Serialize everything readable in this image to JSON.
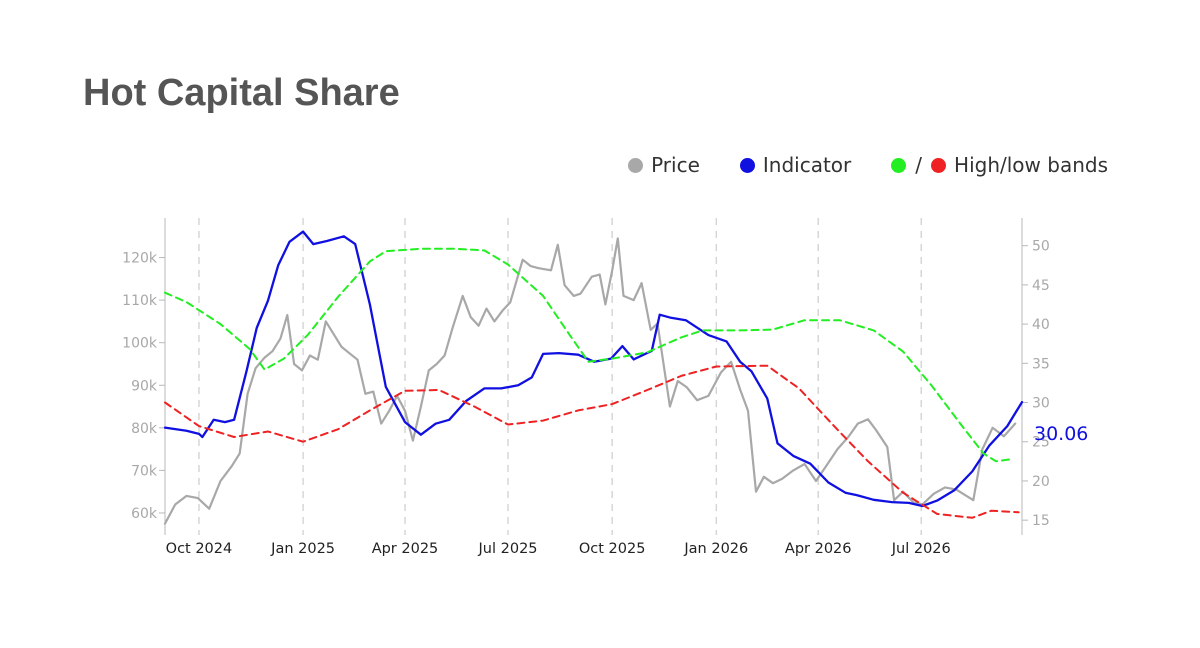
{
  "title": "Hot Capital Share",
  "legend": {
    "price": {
      "label": "Price",
      "color": "#a8a8a8"
    },
    "indicator": {
      "label": "Indicator",
      "color": "#1010e0"
    },
    "bands": {
      "label": "High/low bands",
      "high_color": "#22ee22",
      "low_color": "#ee2222",
      "separator": "/"
    }
  },
  "chart_data": {
    "type": "line",
    "x_axis": {
      "type": "date",
      "range": [
        "2024-09-01",
        "2026-09-28"
      ],
      "ticks": [
        {
          "date": "2024-10-01",
          "label": "Oct 2024"
        },
        {
          "date": "2025-01-01",
          "label": "Jan 2025"
        },
        {
          "date": "2025-04-01",
          "label": "Apr 2025"
        },
        {
          "date": "2025-07-01",
          "label": "Jul 2025"
        },
        {
          "date": "2025-10-01",
          "label": "Oct 2025"
        },
        {
          "date": "2026-01-01",
          "label": "Jan 2026"
        },
        {
          "date": "2026-04-01",
          "label": "Apr 2026"
        },
        {
          "date": "2026-07-01",
          "label": "Jul 2026"
        }
      ],
      "grid": "dashed-vertical"
    },
    "y_left": {
      "range": [
        56000,
        126000
      ],
      "ticks": [
        {
          "value": 60000,
          "label": "60k"
        },
        {
          "value": 70000,
          "label": "70k"
        },
        {
          "value": 80000,
          "label": "80k"
        },
        {
          "value": 90000,
          "label": "90k"
        },
        {
          "value": 100000,
          "label": "100k"
        },
        {
          "value": 110000,
          "label": "110k"
        },
        {
          "value": 120000,
          "label": "120k"
        }
      ]
    },
    "y_right": {
      "range": [
        14,
        52
      ],
      "ticks": [
        {
          "value": 15,
          "label": "15"
        },
        {
          "value": 20,
          "label": "20"
        },
        {
          "value": 25,
          "label": "25"
        },
        {
          "value": 30,
          "label": "30"
        },
        {
          "value": 35,
          "label": "35"
        },
        {
          "value": 40,
          "label": "40"
        },
        {
          "value": 45,
          "label": "45"
        },
        {
          "value": 50,
          "label": "50"
        }
      ]
    },
    "latest_value_label": "30.06",
    "series": [
      {
        "name": "Price",
        "axis": "left",
        "color": "#a8a8a8",
        "style": "solid",
        "points": [
          [
            "2024-09-01",
            57500
          ],
          [
            "2024-09-10",
            62000
          ],
          [
            "2024-09-20",
            64000
          ],
          [
            "2024-09-30",
            63500
          ],
          [
            "2024-10-10",
            61000
          ],
          [
            "2024-10-20",
            67500
          ],
          [
            "2024-10-30",
            71000
          ],
          [
            "2024-11-06",
            74000
          ],
          [
            "2024-11-13",
            88000
          ],
          [
            "2024-11-20",
            94000
          ],
          [
            "2024-11-28",
            96500
          ],
          [
            "2024-12-05",
            98000
          ],
          [
            "2024-12-12",
            101000
          ],
          [
            "2024-12-18",
            106500
          ],
          [
            "2024-12-24",
            95000
          ],
          [
            "2024-12-31",
            93500
          ],
          [
            "2025-01-07",
            97000
          ],
          [
            "2025-01-14",
            96000
          ],
          [
            "2025-01-21",
            105000
          ],
          [
            "2025-01-28",
            102000
          ],
          [
            "2025-02-04",
            99000
          ],
          [
            "2025-02-11",
            97500
          ],
          [
            "2025-02-18",
            96000
          ],
          [
            "2025-02-25",
            88000
          ],
          [
            "2025-03-04",
            88500
          ],
          [
            "2025-03-11",
            81000
          ],
          [
            "2025-03-18",
            84000
          ],
          [
            "2025-03-25",
            87500
          ],
          [
            "2025-04-01",
            84000
          ],
          [
            "2025-04-08",
            77000
          ],
          [
            "2025-04-15",
            85000
          ],
          [
            "2025-04-22",
            93500
          ],
          [
            "2025-04-29",
            95000
          ],
          [
            "2025-05-06",
            97000
          ],
          [
            "2025-05-13",
            103500
          ],
          [
            "2025-05-22",
            111000
          ],
          [
            "2025-05-29",
            106000
          ],
          [
            "2025-06-05",
            104000
          ],
          [
            "2025-06-12",
            108000
          ],
          [
            "2025-06-19",
            105000
          ],
          [
            "2025-06-26",
            107500
          ],
          [
            "2025-07-03",
            109500
          ],
          [
            "2025-07-14",
            119500
          ],
          [
            "2025-07-21",
            118000
          ],
          [
            "2025-07-28",
            117500
          ],
          [
            "2025-08-08",
            117000
          ],
          [
            "2025-08-14",
            123000
          ],
          [
            "2025-08-20",
            113500
          ],
          [
            "2025-08-28",
            111000
          ],
          [
            "2025-09-03",
            111500
          ],
          [
            "2025-09-13",
            115500
          ],
          [
            "2025-09-20",
            116000
          ],
          [
            "2025-09-25",
            109000
          ],
          [
            "2025-10-01",
            117000
          ],
          [
            "2025-10-06",
            124500
          ],
          [
            "2025-10-11",
            111000
          ],
          [
            "2025-10-20",
            110000
          ],
          [
            "2025-10-27",
            114000
          ],
          [
            "2025-11-04",
            103000
          ],
          [
            "2025-11-10",
            104500
          ],
          [
            "2025-11-21",
            85000
          ],
          [
            "2025-11-28",
            91000
          ],
          [
            "2025-12-06",
            89500
          ],
          [
            "2025-12-15",
            86500
          ],
          [
            "2025-12-25",
            87500
          ],
          [
            "2026-01-05",
            93000
          ],
          [
            "2026-01-14",
            95500
          ],
          [
            "2026-01-22",
            89000
          ],
          [
            "2026-01-29",
            84000
          ],
          [
            "2026-02-05",
            65000
          ],
          [
            "2026-02-12",
            68500
          ],
          [
            "2026-02-20",
            67000
          ],
          [
            "2026-02-28",
            68000
          ],
          [
            "2026-03-10",
            70000
          ],
          [
            "2026-03-20",
            71500
          ],
          [
            "2026-03-30",
            67500
          ],
          [
            "2026-04-08",
            71000
          ],
          [
            "2026-04-18",
            75000
          ],
          [
            "2026-04-28",
            78000
          ],
          [
            "2026-05-06",
            81000
          ],
          [
            "2026-05-15",
            82000
          ],
          [
            "2026-05-22",
            79500
          ],
          [
            "2026-06-01",
            75500
          ],
          [
            "2026-06-07",
            63000
          ],
          [
            "2026-06-15",
            65000
          ],
          [
            "2026-06-24",
            62500
          ],
          [
            "2026-07-02",
            62000
          ],
          [
            "2026-07-12",
            64500
          ],
          [
            "2026-07-22",
            66000
          ],
          [
            "2026-08-01",
            65500
          ],
          [
            "2026-08-10",
            64000
          ],
          [
            "2026-08-16",
            63000
          ],
          [
            "2026-08-24",
            75000
          ],
          [
            "2026-09-02",
            80000
          ],
          [
            "2026-09-12",
            78000
          ],
          [
            "2026-09-22",
            81000
          ]
        ]
      },
      {
        "name": "Indicator",
        "axis": "right",
        "color": "#1010e0",
        "style": "solid",
        "points": [
          [
            "2024-09-01",
            26.8
          ],
          [
            "2024-09-20",
            26.4
          ],
          [
            "2024-10-01",
            26
          ],
          [
            "2024-10-04",
            25.6
          ],
          [
            "2024-10-14",
            27.8
          ],
          [
            "2024-10-24",
            27.5
          ],
          [
            "2024-11-01",
            27.8
          ],
          [
            "2024-11-12",
            34
          ],
          [
            "2024-11-21",
            39.5
          ],
          [
            "2024-12-01",
            43
          ],
          [
            "2024-12-10",
            47.5
          ],
          [
            "2024-12-20",
            50.5
          ],
          [
            "2025-01-01",
            51.8
          ],
          [
            "2025-01-10",
            50.2
          ],
          [
            "2025-01-22",
            50.6
          ],
          [
            "2025-02-06",
            51.2
          ],
          [
            "2025-02-16",
            50.2
          ],
          [
            "2025-03-01",
            42.5
          ],
          [
            "2025-03-15",
            32
          ],
          [
            "2025-04-01",
            27.5
          ],
          [
            "2025-04-15",
            25.9
          ],
          [
            "2025-04-28",
            27.3
          ],
          [
            "2025-05-10",
            27.8
          ],
          [
            "2025-05-25",
            30.2
          ],
          [
            "2025-06-10",
            31.8
          ],
          [
            "2025-06-25",
            31.8
          ],
          [
            "2025-07-10",
            32.2
          ],
          [
            "2025-07-22",
            33.2
          ],
          [
            "2025-08-01",
            36.2
          ],
          [
            "2025-08-15",
            36.3
          ],
          [
            "2025-09-01",
            36.1
          ],
          [
            "2025-09-15",
            35.2
          ],
          [
            "2025-09-30",
            35.6
          ],
          [
            "2025-10-10",
            37.2
          ],
          [
            "2025-10-20",
            35.5
          ],
          [
            "2025-11-05",
            36.6
          ],
          [
            "2025-11-12",
            41.2
          ],
          [
            "2025-11-22",
            40.8
          ],
          [
            "2025-12-05",
            40.5
          ],
          [
            "2025-12-25",
            38.6
          ],
          [
            "2026-01-10",
            37.8
          ],
          [
            "2026-01-22",
            35.2
          ],
          [
            "2026-02-01",
            34
          ],
          [
            "2026-02-15",
            30.5
          ],
          [
            "2026-02-24",
            24.8
          ],
          [
            "2026-03-10",
            23.2
          ],
          [
            "2026-03-25",
            22.2
          ],
          [
            "2026-04-10",
            19.8
          ],
          [
            "2026-04-25",
            18.5
          ],
          [
            "2026-05-05",
            18.2
          ],
          [
            "2026-05-20",
            17.6
          ],
          [
            "2026-06-05",
            17.3
          ],
          [
            "2026-06-20",
            17.2
          ],
          [
            "2026-07-02",
            16.8
          ],
          [
            "2026-07-15",
            17.5
          ],
          [
            "2026-07-30",
            18.8
          ],
          [
            "2026-08-15",
            21.2
          ],
          [
            "2026-08-30",
            24.5
          ],
          [
            "2026-09-15",
            27
          ],
          [
            "2026-09-28",
            30.06
          ]
        ]
      },
      {
        "name": "High band",
        "axis": "right",
        "color": "#22ee22",
        "style": "dashed",
        "points": [
          [
            "2024-09-01",
            44
          ],
          [
            "2024-09-20",
            42.8
          ],
          [
            "2024-10-20",
            40
          ],
          [
            "2024-11-15",
            36.8
          ],
          [
            "2024-11-28",
            34.2
          ],
          [
            "2024-12-15",
            35.6
          ],
          [
            "2025-01-05",
            38.6
          ],
          [
            "2025-02-01",
            43.5
          ],
          [
            "2025-03-01",
            48
          ],
          [
            "2025-03-15",
            49.3
          ],
          [
            "2025-04-15",
            49.6
          ],
          [
            "2025-05-15",
            49.6
          ],
          [
            "2025-06-10",
            49.4
          ],
          [
            "2025-07-01",
            47.6
          ],
          [
            "2025-08-01",
            43.6
          ],
          [
            "2025-08-25",
            38.5
          ],
          [
            "2025-09-10",
            35.2
          ],
          [
            "2025-10-01",
            35.6
          ],
          [
            "2025-11-01",
            36.4
          ],
          [
            "2025-12-01",
            38.3
          ],
          [
            "2025-12-20",
            39.2
          ],
          [
            "2026-01-20",
            39.2
          ],
          [
            "2026-02-20",
            39.3
          ],
          [
            "2026-03-20",
            40.5
          ],
          [
            "2026-04-20",
            40.5
          ],
          [
            "2026-05-20",
            39.2
          ],
          [
            "2026-06-15",
            36.5
          ],
          [
            "2026-07-10",
            32.2
          ],
          [
            "2026-08-05",
            27.2
          ],
          [
            "2026-08-25",
            23.5
          ],
          [
            "2026-09-05",
            22.5
          ],
          [
            "2026-09-20",
            22.8
          ]
        ]
      },
      {
        "name": "Low band",
        "axis": "right",
        "color": "#ee2222",
        "style": "dashed",
        "points": [
          [
            "2024-09-01",
            30
          ],
          [
            "2024-10-01",
            27
          ],
          [
            "2024-11-01",
            25.6
          ],
          [
            "2024-12-01",
            26.3
          ],
          [
            "2025-01-01",
            25
          ],
          [
            "2025-02-01",
            26.6
          ],
          [
            "2025-03-01",
            29
          ],
          [
            "2025-04-01",
            31.5
          ],
          [
            "2025-05-01",
            31.6
          ],
          [
            "2025-06-01",
            29.5
          ],
          [
            "2025-07-01",
            27.2
          ],
          [
            "2025-08-01",
            27.7
          ],
          [
            "2025-09-01",
            29
          ],
          [
            "2025-10-01",
            29.8
          ],
          [
            "2025-11-01",
            31.6
          ],
          [
            "2025-12-01",
            33.4
          ],
          [
            "2026-01-01",
            34.6
          ],
          [
            "2026-02-15",
            34.7
          ],
          [
            "2026-03-15",
            31.8
          ],
          [
            "2026-04-15",
            27
          ],
          [
            "2026-05-15",
            22.5
          ],
          [
            "2026-06-15",
            18.5
          ],
          [
            "2026-07-15",
            15.8
          ],
          [
            "2026-08-15",
            15.3
          ],
          [
            "2026-09-01",
            16.2
          ],
          [
            "2026-09-25",
            16
          ]
        ]
      }
    ]
  }
}
